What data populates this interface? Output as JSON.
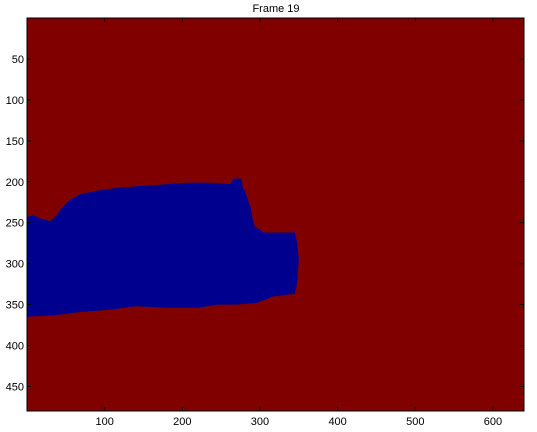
{
  "chart_data": {
    "type": "heatmap",
    "title": "Frame 19",
    "xlabel": "",
    "ylabel": "",
    "xlim": [
      0,
      640
    ],
    "ylim": [
      480,
      0
    ],
    "y_direction": "reversed (image axes, origin top-left)",
    "x_ticks": [
      100,
      200,
      300,
      400,
      500,
      600
    ],
    "y_ticks": [
      50,
      100,
      150,
      200,
      250,
      300,
      350,
      400,
      450
    ],
    "x_tick_labels": [
      "100",
      "200",
      "300",
      "400",
      "500",
      "600"
    ],
    "y_tick_labels": [
      "50",
      "100",
      "150",
      "200",
      "250",
      "300",
      "350",
      "400",
      "450"
    ],
    "grid": false,
    "legend": "none",
    "background_class": {
      "label": "background",
      "color": "#800000"
    },
    "foreground_class": {
      "label": "segmented region",
      "color": "#00008f"
    },
    "foreground_region_outline": [
      [
        0,
        243
      ],
      [
        8,
        241
      ],
      [
        15,
        244
      ],
      [
        22,
        246
      ],
      [
        30,
        248
      ],
      [
        38,
        241
      ],
      [
        45,
        232
      ],
      [
        55,
        222
      ],
      [
        70,
        215
      ],
      [
        90,
        211
      ],
      [
        120,
        207
      ],
      [
        150,
        205
      ],
      [
        180,
        203
      ],
      [
        210,
        201
      ],
      [
        235,
        201
      ],
      [
        262,
        203
      ],
      [
        264,
        200
      ],
      [
        266,
        196
      ],
      [
        276,
        196
      ],
      [
        278,
        206
      ],
      [
        282,
        215
      ],
      [
        288,
        232
      ],
      [
        290,
        243
      ],
      [
        293,
        254
      ],
      [
        305,
        262
      ],
      [
        345,
        262
      ],
      [
        348,
        275
      ],
      [
        350,
        295
      ],
      [
        348,
        323
      ],
      [
        345,
        337
      ],
      [
        318,
        340
      ],
      [
        296,
        348
      ],
      [
        270,
        350
      ],
      [
        246,
        350
      ],
      [
        220,
        354
      ],
      [
        180,
        354
      ],
      [
        140,
        352
      ],
      [
        110,
        356
      ],
      [
        70,
        359
      ],
      [
        35,
        363
      ],
      [
        0,
        365
      ]
    ]
  }
}
